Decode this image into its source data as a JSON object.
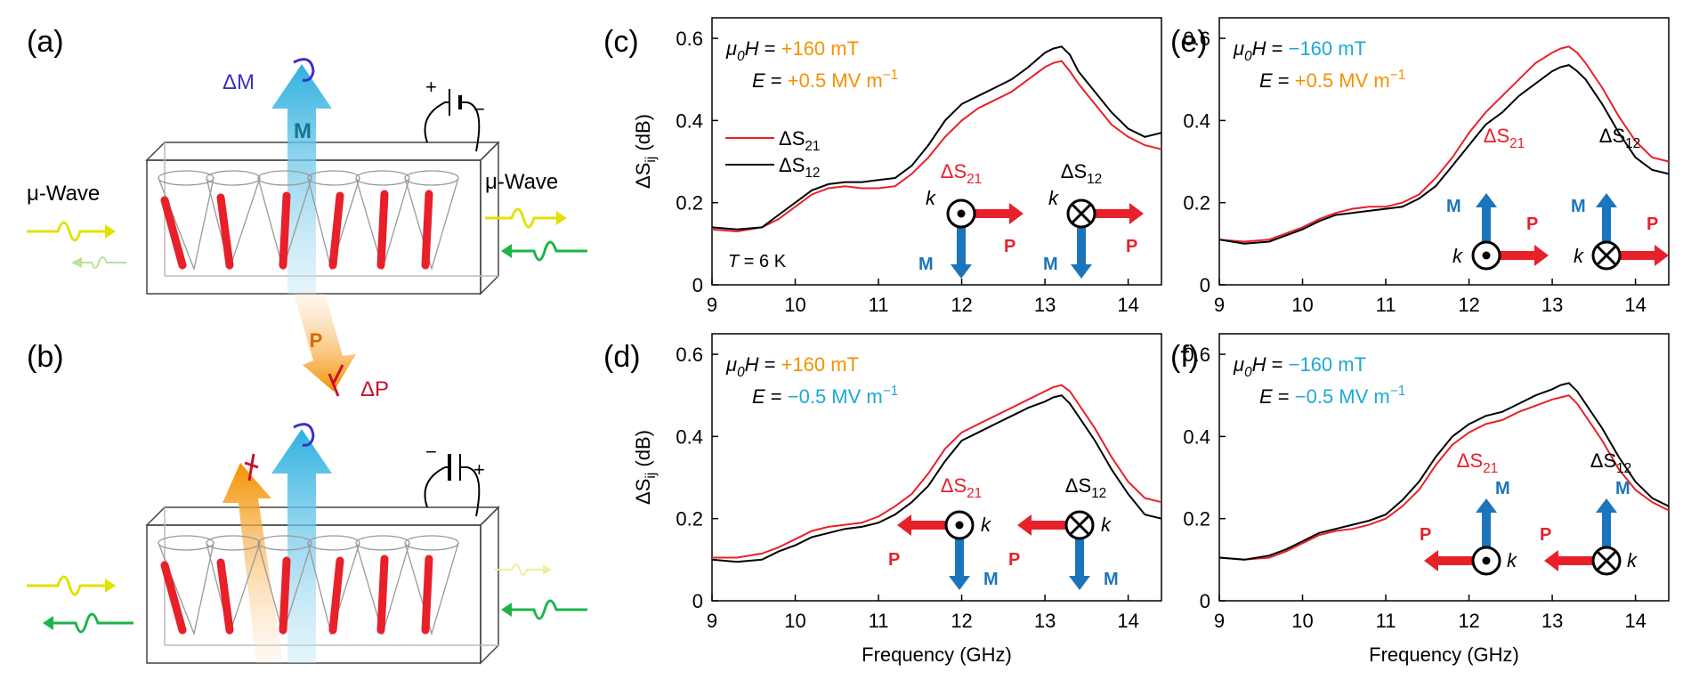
{
  "panel_labels": [
    "(a)",
    "(b)",
    "(c)",
    "(d)",
    "(e)",
    "(f)"
  ],
  "schematic": {
    "wave_label": "μ-Wave",
    "delta_m": "ΔM",
    "delta_p": "ΔP",
    "m_label": "M",
    "p_label": "P",
    "plus": "+",
    "minus": "−"
  },
  "colors": {
    "s21": "#e8202a",
    "s12": "#000000",
    "orange": "#f39200",
    "cyan": "#1ba9d6",
    "blue_arrow": "#1b75bc",
    "red_arrow": "#e8202a"
  },
  "chart_data": [
    {
      "panel": "(c)",
      "type": "line",
      "field": "+160 mT",
      "field_sign": "plus",
      "efield": "+0.5 MV m",
      "efield_sign": "plus",
      "efield_exp": "−1",
      "temperature": "T = 6 K",
      "show_legend": true,
      "inset": "c",
      "xlabel": "",
      "ylabel": "ΔSij (dB)",
      "xlim": [
        9,
        14.4
      ],
      "ylim": [
        0,
        0.65
      ],
      "xticks": [
        9,
        10,
        11,
        12,
        13,
        14
      ],
      "yticks": [
        0,
        0.2,
        0.4,
        0.6
      ],
      "series": [
        {
          "name": "ΔS21",
          "color": "#e8202a",
          "x": [
            9.0,
            9.3,
            9.6,
            9.8,
            10.0,
            10.2,
            10.4,
            10.6,
            10.8,
            11.0,
            11.2,
            11.4,
            11.6,
            11.8,
            12.0,
            12.2,
            12.4,
            12.6,
            12.8,
            13.0,
            13.1,
            13.2,
            13.3,
            13.4,
            13.6,
            13.8,
            14.0,
            14.2,
            14.4
          ],
          "values": [
            0.135,
            0.13,
            0.14,
            0.16,
            0.19,
            0.22,
            0.235,
            0.24,
            0.235,
            0.235,
            0.24,
            0.27,
            0.31,
            0.36,
            0.4,
            0.43,
            0.45,
            0.47,
            0.5,
            0.53,
            0.54,
            0.545,
            0.52,
            0.49,
            0.44,
            0.39,
            0.36,
            0.34,
            0.33
          ]
        },
        {
          "name": "ΔS12",
          "color": "#000000",
          "x": [
            9.0,
            9.3,
            9.6,
            9.8,
            10.0,
            10.2,
            10.4,
            10.6,
            10.8,
            11.0,
            11.2,
            11.4,
            11.6,
            11.8,
            12.0,
            12.2,
            12.4,
            12.6,
            12.8,
            13.0,
            13.1,
            13.2,
            13.3,
            13.4,
            13.6,
            13.8,
            14.0,
            14.2,
            14.4
          ],
          "values": [
            0.14,
            0.135,
            0.14,
            0.17,
            0.2,
            0.23,
            0.245,
            0.25,
            0.25,
            0.255,
            0.26,
            0.29,
            0.34,
            0.4,
            0.44,
            0.46,
            0.48,
            0.5,
            0.53,
            0.565,
            0.575,
            0.58,
            0.56,
            0.52,
            0.47,
            0.42,
            0.38,
            0.36,
            0.37
          ]
        }
      ]
    },
    {
      "panel": "(d)",
      "type": "line",
      "field": "+160 mT",
      "field_sign": "plus",
      "efield": "−0.5 MV m",
      "efield_sign": "minus",
      "efield_exp": "−1",
      "show_legend": false,
      "inset": "d",
      "xlabel": "Frequency (GHz)",
      "ylabel": "ΔSij (dB)",
      "xlim": [
        9,
        14.4
      ],
      "ylim": [
        0,
        0.65
      ],
      "xticks": [
        9,
        10,
        11,
        12,
        13,
        14
      ],
      "yticks": [
        0,
        0.2,
        0.4,
        0.6
      ],
      "series": [
        {
          "name": "ΔS21",
          "color": "#e8202a",
          "x": [
            9.0,
            9.3,
            9.6,
            9.8,
            10.0,
            10.2,
            10.4,
            10.6,
            10.8,
            11.0,
            11.2,
            11.4,
            11.6,
            11.8,
            12.0,
            12.2,
            12.4,
            12.6,
            12.8,
            13.0,
            13.1,
            13.2,
            13.3,
            13.4,
            13.6,
            13.8,
            14.0,
            14.2,
            14.4
          ],
          "values": [
            0.105,
            0.105,
            0.115,
            0.13,
            0.15,
            0.17,
            0.18,
            0.185,
            0.19,
            0.205,
            0.23,
            0.26,
            0.31,
            0.37,
            0.41,
            0.43,
            0.45,
            0.47,
            0.49,
            0.51,
            0.52,
            0.525,
            0.51,
            0.48,
            0.42,
            0.35,
            0.29,
            0.25,
            0.24
          ]
        },
        {
          "name": "ΔS12",
          "color": "#000000",
          "x": [
            9.0,
            9.3,
            9.6,
            9.8,
            10.0,
            10.2,
            10.4,
            10.6,
            10.8,
            11.0,
            11.2,
            11.4,
            11.6,
            11.8,
            12.0,
            12.2,
            12.4,
            12.6,
            12.8,
            13.0,
            13.1,
            13.2,
            13.3,
            13.4,
            13.6,
            13.8,
            14.0,
            14.2,
            14.4
          ],
          "values": [
            0.1,
            0.095,
            0.1,
            0.12,
            0.135,
            0.155,
            0.165,
            0.175,
            0.18,
            0.19,
            0.21,
            0.24,
            0.28,
            0.34,
            0.39,
            0.41,
            0.43,
            0.45,
            0.47,
            0.485,
            0.495,
            0.5,
            0.48,
            0.45,
            0.39,
            0.32,
            0.26,
            0.21,
            0.2
          ]
        }
      ]
    },
    {
      "panel": "(e)",
      "type": "line",
      "field": "−160 mT",
      "field_sign": "minus",
      "efield": "+0.5 MV m",
      "efield_sign": "plus",
      "efield_exp": "−1",
      "show_legend": false,
      "inset": "e",
      "xlabel": "",
      "ylabel": "",
      "xlim": [
        9,
        14.4
      ],
      "ylim": [
        0,
        0.65
      ],
      "xticks": [
        9,
        10,
        11,
        12,
        13,
        14
      ],
      "yticks": [
        0,
        0.2,
        0.4,
        0.6
      ],
      "series": [
        {
          "name": "ΔS21",
          "color": "#e8202a",
          "x": [
            9.0,
            9.3,
            9.6,
            9.8,
            10.0,
            10.2,
            10.4,
            10.6,
            10.8,
            11.0,
            11.2,
            11.4,
            11.6,
            11.8,
            12.0,
            12.2,
            12.4,
            12.6,
            12.8,
            13.0,
            13.1,
            13.2,
            13.3,
            13.4,
            13.6,
            13.8,
            14.0,
            14.2,
            14.4
          ],
          "values": [
            0.11,
            0.105,
            0.11,
            0.125,
            0.14,
            0.16,
            0.175,
            0.185,
            0.19,
            0.19,
            0.2,
            0.22,
            0.26,
            0.31,
            0.37,
            0.42,
            0.46,
            0.5,
            0.54,
            0.565,
            0.575,
            0.58,
            0.565,
            0.54,
            0.48,
            0.41,
            0.35,
            0.31,
            0.3
          ]
        },
        {
          "name": "ΔS12",
          "color": "#000000",
          "x": [
            9.0,
            9.3,
            9.6,
            9.8,
            10.0,
            10.2,
            10.4,
            10.6,
            10.8,
            11.0,
            11.2,
            11.4,
            11.6,
            11.8,
            12.0,
            12.2,
            12.4,
            12.6,
            12.8,
            13.0,
            13.1,
            13.2,
            13.3,
            13.4,
            13.6,
            13.8,
            14.0,
            14.2,
            14.4
          ],
          "values": [
            0.11,
            0.1,
            0.105,
            0.12,
            0.135,
            0.155,
            0.17,
            0.175,
            0.18,
            0.185,
            0.19,
            0.21,
            0.24,
            0.29,
            0.34,
            0.39,
            0.42,
            0.46,
            0.49,
            0.52,
            0.53,
            0.535,
            0.52,
            0.5,
            0.44,
            0.37,
            0.31,
            0.28,
            0.27
          ]
        }
      ]
    },
    {
      "panel": "(f)",
      "type": "line",
      "field": "−160 mT",
      "field_sign": "minus",
      "efield": "−0.5 MV m",
      "efield_sign": "minus",
      "efield_exp": "−1",
      "show_legend": false,
      "inset": "f",
      "xlabel": "Frequency (GHz)",
      "ylabel": "",
      "xlim": [
        9,
        14.4
      ],
      "ylim": [
        0,
        0.65
      ],
      "xticks": [
        9,
        10,
        11,
        12,
        13,
        14
      ],
      "yticks": [
        0,
        0.2,
        0.4,
        0.6
      ],
      "series": [
        {
          "name": "ΔS21",
          "color": "#e8202a",
          "x": [
            9.0,
            9.3,
            9.6,
            9.8,
            10.0,
            10.2,
            10.4,
            10.6,
            10.8,
            11.0,
            11.2,
            11.4,
            11.6,
            11.8,
            12.0,
            12.2,
            12.4,
            12.6,
            12.8,
            13.0,
            13.1,
            13.2,
            13.3,
            13.4,
            13.6,
            13.8,
            14.0,
            14.2,
            14.4
          ],
          "values": [
            0.105,
            0.1,
            0.105,
            0.12,
            0.14,
            0.16,
            0.17,
            0.175,
            0.185,
            0.2,
            0.23,
            0.27,
            0.33,
            0.38,
            0.41,
            0.43,
            0.44,
            0.46,
            0.475,
            0.49,
            0.495,
            0.5,
            0.48,
            0.45,
            0.39,
            0.32,
            0.27,
            0.24,
            0.22
          ]
        },
        {
          "name": "ΔS12",
          "color": "#000000",
          "x": [
            9.0,
            9.3,
            9.6,
            9.8,
            10.0,
            10.2,
            10.4,
            10.6,
            10.8,
            11.0,
            11.2,
            11.4,
            11.6,
            11.8,
            12.0,
            12.2,
            12.4,
            12.6,
            12.8,
            13.0,
            13.1,
            13.2,
            13.3,
            13.4,
            13.6,
            13.8,
            14.0,
            14.2,
            14.4
          ],
          "values": [
            0.105,
            0.1,
            0.11,
            0.125,
            0.145,
            0.165,
            0.175,
            0.185,
            0.195,
            0.21,
            0.245,
            0.29,
            0.35,
            0.4,
            0.43,
            0.45,
            0.46,
            0.48,
            0.5,
            0.515,
            0.525,
            0.53,
            0.51,
            0.48,
            0.42,
            0.35,
            0.29,
            0.25,
            0.23
          ]
        }
      ]
    }
  ],
  "legend": [
    {
      "label": "ΔS",
      "sub": "21",
      "color": "#e8202a"
    },
    {
      "label": "ΔS",
      "sub": "12",
      "color": "#000000"
    }
  ],
  "inset_labels": {
    "s": "ΔS",
    "s21_sub": "21",
    "s12_sub": "12",
    "k": "k",
    "m": "M",
    "p": "P"
  }
}
